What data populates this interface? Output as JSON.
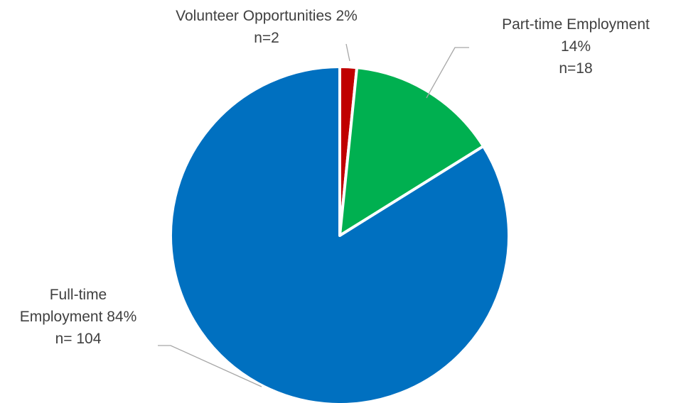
{
  "chart_data": {
    "type": "pie",
    "title": "",
    "slices": [
      {
        "name": "Volunteer Opportunities",
        "percent": 2,
        "n": 2,
        "color": "#C00000",
        "label_lines": [
          "Volunteer Opportunities 2%",
          "n=2"
        ]
      },
      {
        "name": "Part-time Employment",
        "percent": 14,
        "n": 18,
        "color": "#00B050",
        "label_lines": [
          "Part-time Employment",
          "14%",
          "n=18"
        ]
      },
      {
        "name": "Full-time Employment",
        "percent": 84,
        "n": 104,
        "color": "#0070C0",
        "label_lines": [
          "Full-time",
          "Employment 84%",
          "n= 104"
        ]
      }
    ],
    "legend": "none",
    "leader_line_color": "#A6A6A6"
  }
}
